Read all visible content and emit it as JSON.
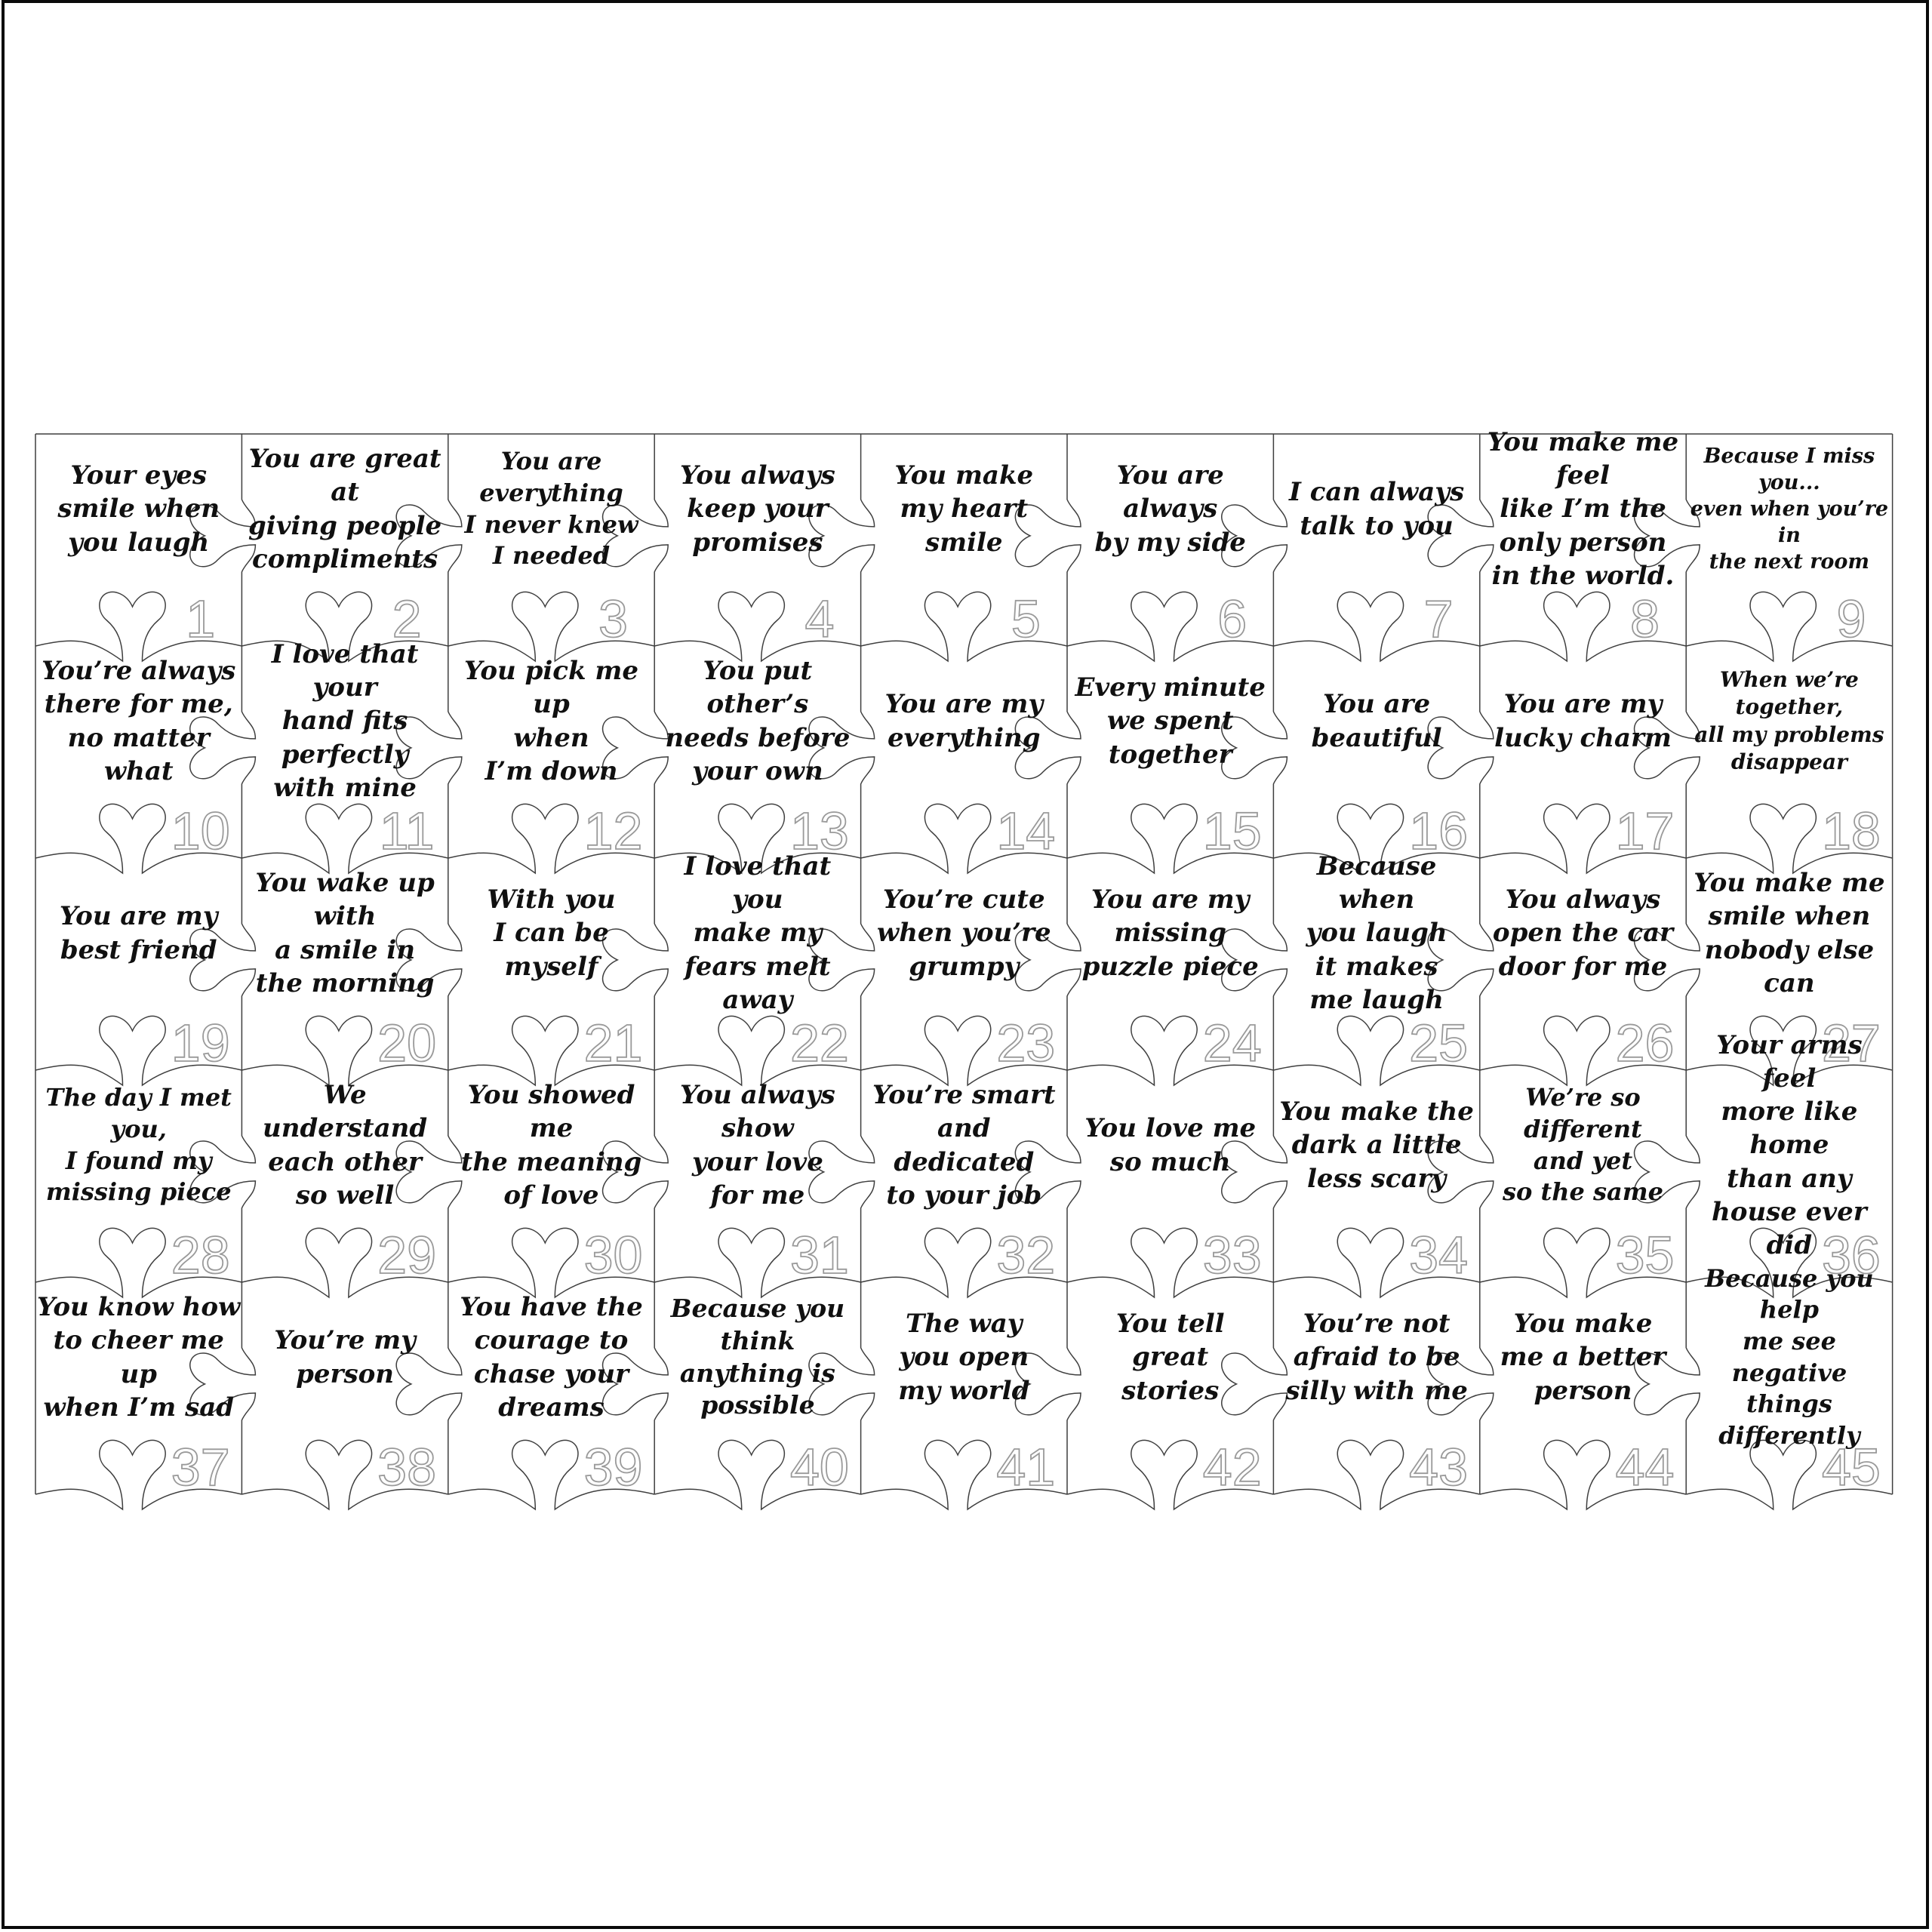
{
  "frame": {
    "background": "#ffffff",
    "border_color": "#0a0a0a"
  },
  "style": {
    "outline_color": "#3f3f3f",
    "number_outline_color": "#9a9a9a",
    "number_fill": "#ffffff",
    "quote_color": "#101010"
  },
  "grid": {
    "columns": 9,
    "rows": 5,
    "piece_count": 45
  },
  "pieces": [
    {
      "number": "1",
      "text": "Your eyes\nsmile when\nyou laugh"
    },
    {
      "number": "2",
      "text": "You are great at\ngiving people\ncompliments"
    },
    {
      "number": "3",
      "text": "You are everything\nI never knew\nI needed"
    },
    {
      "number": "4",
      "text": "You always\nkeep your\npromises"
    },
    {
      "number": "5",
      "text": "You make\nmy heart\nsmile"
    },
    {
      "number": "6",
      "text": "You are\nalways\nby my side"
    },
    {
      "number": "7",
      "text": "I can always\ntalk to you"
    },
    {
      "number": "8",
      "text": "You make me feel\nlike I’m the\nonly person\nin the world."
    },
    {
      "number": "9",
      "text": "Because I miss you...\neven when you’re in\nthe next room"
    },
    {
      "number": "10",
      "text": "You’re always\nthere for me,\nno matter\nwhat"
    },
    {
      "number": "11",
      "text": "I love that your\nhand fits\nperfectly\nwith mine"
    },
    {
      "number": "12",
      "text": "You pick me up\nwhen\nI’m down"
    },
    {
      "number": "13",
      "text": "You put other’s\nneeds before\nyour own"
    },
    {
      "number": "14",
      "text": "You are my\neverything"
    },
    {
      "number": "15",
      "text": "Every minute\nwe spent\ntogether"
    },
    {
      "number": "16",
      "text": "You are\nbeautiful"
    },
    {
      "number": "17",
      "text": "You are my\nlucky charm"
    },
    {
      "number": "18",
      "text": "When we’re together,\nall my problems\ndisappear"
    },
    {
      "number": "19",
      "text": "You are my\nbest friend"
    },
    {
      "number": "20",
      "text": "You wake up with\na smile in\nthe morning"
    },
    {
      "number": "21",
      "text": "With you\nI can be\nmyself"
    },
    {
      "number": "22",
      "text": "I love that you\nmake my\nfears melt away"
    },
    {
      "number": "23",
      "text": "You’re cute\nwhen you’re\ngrumpy"
    },
    {
      "number": "24",
      "text": "You are my\nmissing\npuzzle piece"
    },
    {
      "number": "25",
      "text": "Because when\nyou laugh\nit makes\nme laugh"
    },
    {
      "number": "26",
      "text": "You always\nopen the car\ndoor for me"
    },
    {
      "number": "27",
      "text": "You make me\nsmile when\nnobody else can"
    },
    {
      "number": "28",
      "text": "The day I met you,\nI found my\nmissing piece"
    },
    {
      "number": "29",
      "text": "We understand\neach other\nso well"
    },
    {
      "number": "30",
      "text": "You showed me\nthe meaning\nof love"
    },
    {
      "number": "31",
      "text": "You always show\nyour love\nfor me"
    },
    {
      "number": "32",
      "text": "You’re smart and\ndedicated\nto your job"
    },
    {
      "number": "33",
      "text": "You love me\nso much"
    },
    {
      "number": "34",
      "text": "You make the\ndark a little\nless scary"
    },
    {
      "number": "35",
      "text": "We’re so different\nand yet\nso the same"
    },
    {
      "number": "36",
      "text": "Your arms feel\nmore like home\nthan any\nhouse ever did"
    },
    {
      "number": "37",
      "text": "You know how\nto cheer me up\nwhen I’m sad"
    },
    {
      "number": "38",
      "text": "You’re my\nperson"
    },
    {
      "number": "39",
      "text": "You have the\ncourage to\nchase your\ndreams"
    },
    {
      "number": "40",
      "text": "Because you think\nanything is\npossible"
    },
    {
      "number": "41",
      "text": "The way\nyou open\nmy world"
    },
    {
      "number": "42",
      "text": "You tell\ngreat\nstories"
    },
    {
      "number": "43",
      "text": "You’re not\nafraid to be\nsilly with me"
    },
    {
      "number": "44",
      "text": "You make\nme a better\nperson"
    },
    {
      "number": "45",
      "text": "Because you help\nme see negative\nthings differently"
    }
  ]
}
